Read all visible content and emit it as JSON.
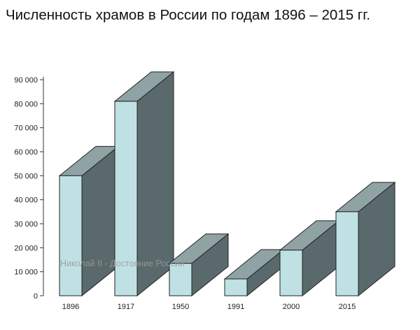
{
  "chart_data": {
    "type": "bar",
    "title": "Численность храмов в России по годам 1896 – 2015 гг.",
    "categories": [
      "1896",
      "1917",
      "1950",
      "1991",
      "2000",
      "2015"
    ],
    "values": [
      50000,
      81000,
      13500,
      7000,
      19000,
      35000
    ],
    "yticks": [
      "0",
      "10 000",
      "20 000",
      "30 000",
      "40 000",
      "50 000",
      "60 000",
      "70 000",
      "80 000",
      "90 000"
    ],
    "ylim": [
      0,
      90000
    ],
    "xlabel": "",
    "ylabel": "",
    "grid": false,
    "style": "3d",
    "watermark": "Николай II - Достояние России",
    "colors": {
      "front": "#bfe1e4",
      "side": "#5a6a6c",
      "top": "#8fa3a5",
      "outline": "#222222",
      "watermark": "#9a9a9a"
    }
  }
}
